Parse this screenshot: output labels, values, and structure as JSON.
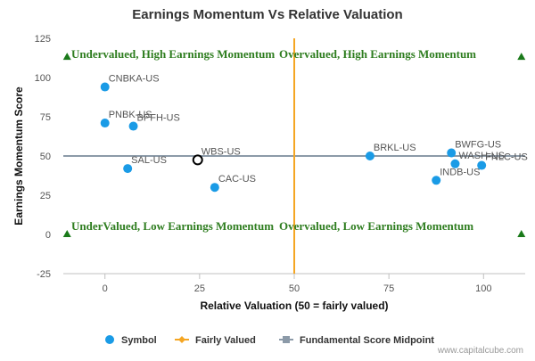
{
  "chart_data": {
    "type": "scatter",
    "title": "Earnings Momentum Vs Relative Valuation",
    "xlabel": "Relative Valuation (50 = fairly valued)",
    "ylabel": "Earnings Momentum Score",
    "xlim": [
      -11,
      111
    ],
    "ylim": [
      -25,
      125
    ],
    "x_ticks": [
      0,
      25,
      50,
      75,
      100
    ],
    "y_ticks": [
      -25,
      0,
      25,
      50,
      75,
      100,
      125
    ],
    "grid": false,
    "legend_position": "bottom",
    "series": [
      {
        "name": "Symbol",
        "color": "#1a9be6",
        "points": [
          {
            "label": "CNBKA-US",
            "x": 0,
            "y": 94
          },
          {
            "label": "PNBK-US",
            "x": 0,
            "y": 71
          },
          {
            "label": "BPFH-US",
            "x": 7.5,
            "y": 69
          },
          {
            "label": "SAL-US",
            "x": 6,
            "y": 42
          },
          {
            "label": "WBS-US",
            "x": 24.5,
            "y": 47.5,
            "highlight": true
          },
          {
            "label": "CAC-US",
            "x": 29,
            "y": 30
          },
          {
            "label": "BRKL-US",
            "x": 70,
            "y": 50
          },
          {
            "label": "BWFG-US",
            "x": 91.5,
            "y": 52
          },
          {
            "label": "WASH-US",
            "x": 92.5,
            "y": 45
          },
          {
            "label": "FNLC-US",
            "x": 99.5,
            "y": 44
          },
          {
            "label": "INDB-US",
            "x": 87.5,
            "y": 34.5
          }
        ]
      },
      {
        "name": "Fairly Valued",
        "color": "#f5a623",
        "line_x": 50
      },
      {
        "name": "Fundamental Score Midpoint",
        "color": "#8c9aa8",
        "line_y": 50
      }
    ],
    "quadrant_labels": {
      "top_left": "Undervalued, High Earnings Momentum",
      "top_right": "Overvalued, High Earnings Momentum",
      "bottom_left": "UnderValued, Low Earnings Momentum",
      "bottom_right": "Overvalued, Low Earnings Momentum"
    },
    "marker_color": "#1a7a1a",
    "credit": "www.capitalcube.com"
  }
}
